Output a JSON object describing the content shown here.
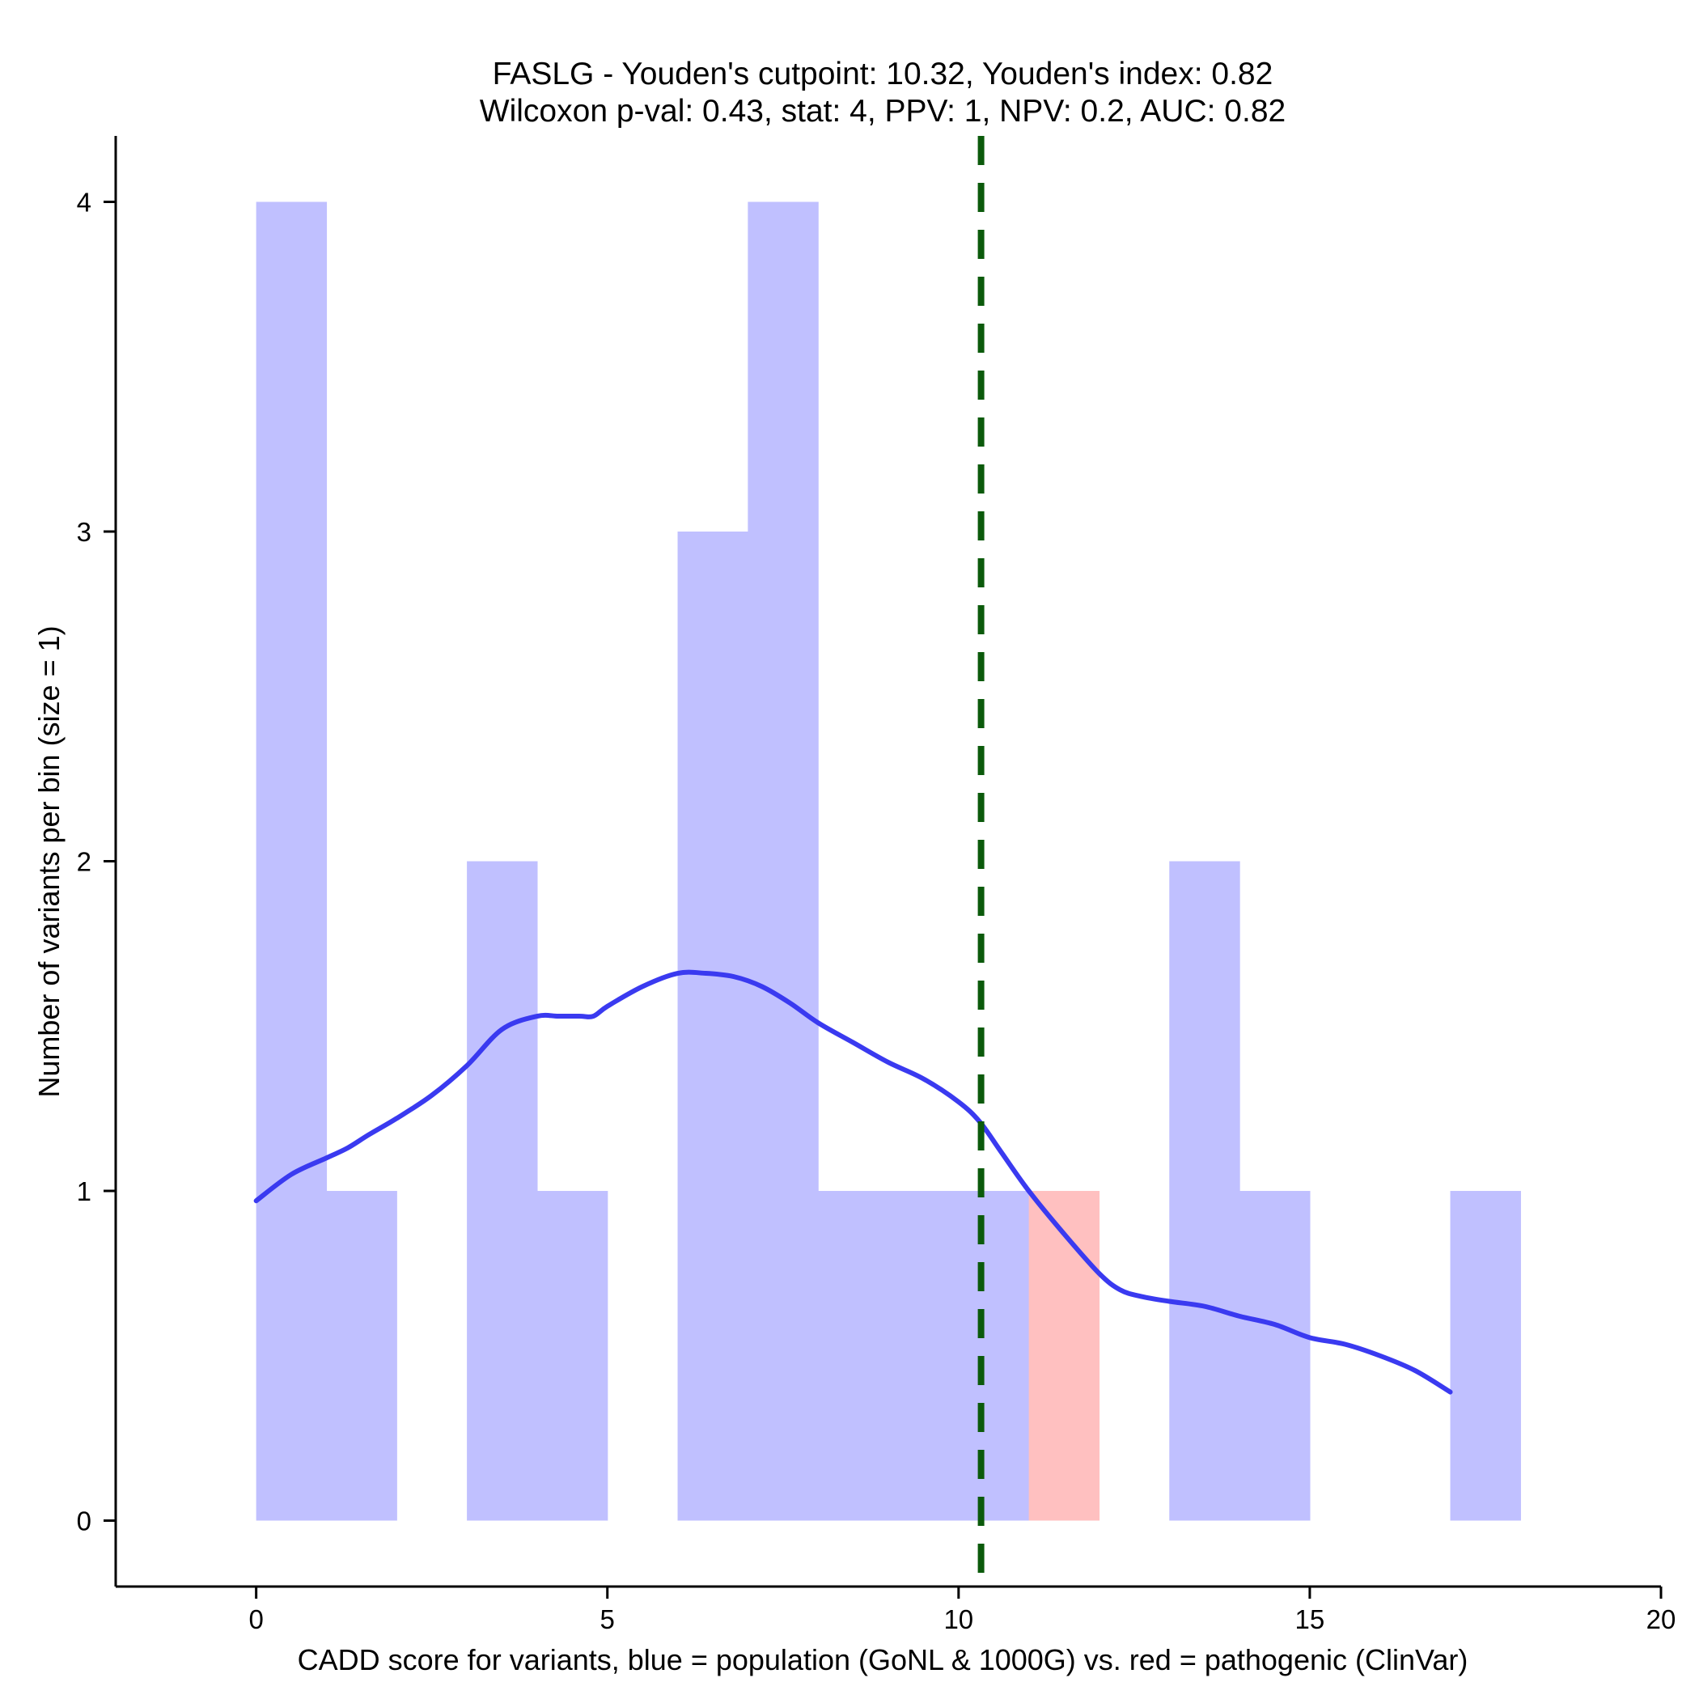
{
  "chart_data": {
    "type": "bar",
    "title_line1": "FASLG - Youden's cutpoint: 10.32, Youden's index: 0.82",
    "title_line2": "Wilcoxon p-val: 0.43, stat: 4, PPV: 1, NPV: 0.2, AUC: 0.82",
    "xlabel": "CADD score for variants, blue = population (GoNL & 1000G) vs. red = pathogenic (ClinVar)",
    "ylabel": "Number of variants per bin (size = 1)",
    "xlim": [
      -2,
      20
    ],
    "ylim": [
      -0.2,
      4.2
    ],
    "xticks": [
      0,
      5,
      10,
      15,
      20
    ],
    "yticks": [
      0,
      1,
      2,
      3,
      4
    ],
    "bin_size": 1,
    "series": [
      {
        "name": "population (GoNL & 1000G)",
        "color": "#c0c0ff",
        "bins": [
          {
            "start": 0,
            "count": 4
          },
          {
            "start": 1,
            "count": 1
          },
          {
            "start": 3,
            "count": 2
          },
          {
            "start": 4,
            "count": 1
          },
          {
            "start": 6,
            "count": 3
          },
          {
            "start": 7,
            "count": 4
          },
          {
            "start": 8,
            "count": 1
          },
          {
            "start": 9,
            "count": 1
          },
          {
            "start": 10,
            "count": 1
          },
          {
            "start": 13,
            "count": 2
          },
          {
            "start": 14,
            "count": 1
          },
          {
            "start": 17,
            "count": 1
          }
        ]
      },
      {
        "name": "pathogenic (ClinVar)",
        "color": "#ffc0c0",
        "bins": [
          {
            "start": 11,
            "count": 1
          }
        ]
      }
    ],
    "density_curve": {
      "color": "#3a3af0",
      "x": [
        0,
        0.5,
        1,
        1.3,
        1.6,
        2,
        2.5,
        3,
        3.5,
        4,
        4.3,
        4.6,
        4.8,
        5,
        5.5,
        6,
        6.4,
        6.8,
        7.2,
        7.6,
        8,
        8.5,
        9,
        9.5,
        10,
        10.3,
        10.6,
        11,
        11.5,
        12,
        12.3,
        12.6,
        13,
        13.5,
        14,
        14.5,
        15,
        15.5,
        16,
        16.5,
        17
      ],
      "y": [
        0.97,
        1.05,
        1.1,
        1.13,
        1.17,
        1.22,
        1.29,
        1.38,
        1.49,
        1.53,
        1.53,
        1.53,
        1.53,
        1.56,
        1.62,
        1.66,
        1.66,
        1.65,
        1.62,
        1.57,
        1.51,
        1.45,
        1.39,
        1.34,
        1.27,
        1.21,
        1.12,
        1.0,
        0.87,
        0.75,
        0.7,
        0.68,
        0.665,
        0.65,
        0.62,
        0.595,
        0.555,
        0.535,
        0.5,
        0.455,
        0.39
      ]
    },
    "cutpoint": {
      "x": 10.32,
      "color": "#0b5a0b"
    }
  }
}
